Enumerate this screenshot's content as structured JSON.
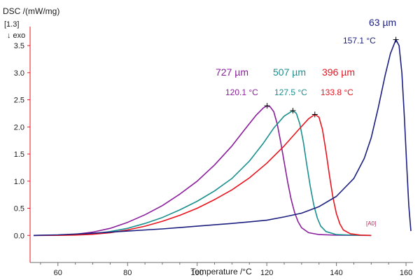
{
  "chart_data": {
    "type": "line",
    "ylabel": "DSC /(mW/mg)",
    "ylabel_sub": "[1.3]",
    "exo_note": "↓ exo",
    "xlabel": "Temperature /°C",
    "xlim": [
      52,
      162
    ],
    "ylim": [
      -0.5,
      3.85
    ],
    "x_ticks": [
      60,
      80,
      100,
      120,
      140,
      160
    ],
    "y_ticks": [
      0.0,
      0.5,
      1.0,
      1.5,
      2.0,
      2.5,
      3.0,
      3.5
    ],
    "y_tick_labels": [
      "0.0",
      "0.5",
      "1.0",
      "1.5",
      "2.0",
      "2.5",
      "3.0",
      "3.5"
    ],
    "grid": false,
    "small_marker": "[A0]",
    "series": [
      {
        "name": "727 µm",
        "peak_label": "120.1 °C",
        "color": "#8a1d9c",
        "peak": [
          120.1,
          2.39
        ],
        "points": [
          [
            53,
            0
          ],
          [
            60,
            0.005
          ],
          [
            65,
            0.02
          ],
          [
            70,
            0.06
          ],
          [
            75,
            0.13
          ],
          [
            80,
            0.24
          ],
          [
            85,
            0.38
          ],
          [
            90,
            0.55
          ],
          [
            95,
            0.76
          ],
          [
            100,
            1.0
          ],
          [
            105,
            1.3
          ],
          [
            110,
            1.65
          ],
          [
            114,
            1.98
          ],
          [
            117,
            2.22
          ],
          [
            119,
            2.35
          ],
          [
            120.1,
            2.39
          ],
          [
            121,
            2.37
          ],
          [
            122,
            2.28
          ],
          [
            123,
            2.05
          ],
          [
            124,
            1.72
          ],
          [
            125,
            1.35
          ],
          [
            126,
            0.98
          ],
          [
            127,
            0.66
          ],
          [
            128,
            0.42
          ],
          [
            129,
            0.25
          ],
          [
            130,
            0.14
          ],
          [
            132,
            0.05
          ],
          [
            135,
            0.015
          ],
          [
            140,
            0.003
          ],
          [
            150,
            0
          ]
        ]
      },
      {
        "name": "507 µm",
        "peak_label": "127.5 °C",
        "color": "#1a8f8f",
        "peak": [
          127.5,
          2.3
        ],
        "points": [
          [
            53,
            0
          ],
          [
            60,
            0.002
          ],
          [
            65,
            0.01
          ],
          [
            70,
            0.03
          ],
          [
            75,
            0.07
          ],
          [
            80,
            0.13
          ],
          [
            85,
            0.22
          ],
          [
            90,
            0.33
          ],
          [
            95,
            0.47
          ],
          [
            100,
            0.63
          ],
          [
            105,
            0.82
          ],
          [
            110,
            1.05
          ],
          [
            115,
            1.37
          ],
          [
            119,
            1.7
          ],
          [
            122,
            1.98
          ],
          [
            125,
            2.2
          ],
          [
            127.5,
            2.3
          ],
          [
            128.5,
            2.25
          ],
          [
            129.5,
            2.05
          ],
          [
            130.5,
            1.72
          ],
          [
            131.5,
            1.3
          ],
          [
            132.5,
            0.9
          ],
          [
            133.5,
            0.56
          ],
          [
            134.5,
            0.32
          ],
          [
            135.5,
            0.17
          ],
          [
            137,
            0.07
          ],
          [
            140,
            0.015
          ],
          [
            145,
            0.003
          ],
          [
            150,
            0
          ]
        ]
      },
      {
        "name": "396 µm",
        "peak_label": "133.8 °C",
        "color": "#e8141e",
        "peak": [
          133.8,
          2.23
        ],
        "points": [
          [
            53,
            0
          ],
          [
            60,
            0.001
          ],
          [
            65,
            0.006
          ],
          [
            70,
            0.02
          ],
          [
            75,
            0.05
          ],
          [
            80,
            0.1
          ],
          [
            85,
            0.17
          ],
          [
            90,
            0.26
          ],
          [
            95,
            0.37
          ],
          [
            100,
            0.5
          ],
          [
            105,
            0.66
          ],
          [
            110,
            0.84
          ],
          [
            115,
            1.06
          ],
          [
            120,
            1.33
          ],
          [
            125,
            1.65
          ],
          [
            129,
            1.94
          ],
          [
            132,
            2.15
          ],
          [
            133.8,
            2.23
          ],
          [
            135,
            2.18
          ],
          [
            136,
            1.95
          ],
          [
            137,
            1.55
          ],
          [
            138,
            1.1
          ],
          [
            139,
            0.7
          ],
          [
            140,
            0.4
          ],
          [
            141,
            0.21
          ],
          [
            142,
            0.1
          ],
          [
            144,
            0.03
          ],
          [
            147,
            0.005
          ],
          [
            150,
            0
          ]
        ]
      },
      {
        "name": "63 µm",
        "peak_label": "157.1 °C",
        "color": "#1c1f80",
        "peak": [
          157.1,
          3.61
        ],
        "points": [
          [
            53,
            0
          ],
          [
            60,
            0.01
          ],
          [
            70,
            0.04
          ],
          [
            80,
            0.08
          ],
          [
            90,
            0.12
          ],
          [
            100,
            0.17
          ],
          [
            110,
            0.22
          ],
          [
            115,
            0.25
          ],
          [
            120,
            0.28
          ],
          [
            125,
            0.34
          ],
          [
            130,
            0.41
          ],
          [
            135,
            0.53
          ],
          [
            140,
            0.72
          ],
          [
            145,
            1.05
          ],
          [
            148,
            1.42
          ],
          [
            150,
            1.8
          ],
          [
            152,
            2.35
          ],
          [
            154,
            2.95
          ],
          [
            155.5,
            3.35
          ],
          [
            157.1,
            3.61
          ],
          [
            158,
            3.5
          ],
          [
            158.8,
            3.0
          ],
          [
            159.5,
            2.2
          ],
          [
            160.2,
            1.3
          ],
          [
            160.8,
            0.55
          ],
          [
            161.4,
            0.08
          ]
        ]
      }
    ]
  }
}
